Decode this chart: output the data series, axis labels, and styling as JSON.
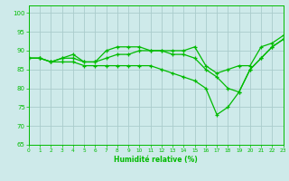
{
  "xlabel": "Humidité relative (%)",
  "bg_color": "#ceeaea",
  "line_color": "#00bb00",
  "grid_color": "#aacccc",
  "line1_x": [
    0,
    1,
    2,
    3,
    4,
    5,
    6,
    7,
    8,
    9,
    10,
    11,
    12,
    13,
    14,
    15,
    16,
    17,
    18,
    19,
    20,
    21,
    22,
    23
  ],
  "line1_y": [
    88,
    88,
    87,
    88,
    89,
    87,
    87,
    90,
    91,
    91,
    91,
    90,
    90,
    90,
    90,
    91,
    86,
    84,
    85,
    86,
    86,
    91,
    92,
    94
  ],
  "line2_x": [
    0,
    1,
    2,
    3,
    4,
    5,
    6,
    7,
    8,
    9,
    10,
    11,
    12,
    13,
    14,
    15,
    16,
    17,
    18,
    19,
    20,
    21,
    22,
    23
  ],
  "line2_y": [
    88,
    88,
    87,
    88,
    88,
    87,
    87,
    88,
    89,
    89,
    90,
    90,
    90,
    89,
    89,
    88,
    85,
    83,
    80,
    79,
    85,
    88,
    91,
    93
  ],
  "line3_x": [
    0,
    1,
    2,
    3,
    4,
    5,
    6,
    7,
    8,
    9,
    10,
    11,
    12,
    13,
    14,
    15,
    16,
    17,
    18,
    19,
    20,
    21,
    22,
    23
  ],
  "line3_y": [
    88,
    88,
    87,
    87,
    87,
    86,
    86,
    86,
    86,
    86,
    86,
    86,
    85,
    84,
    83,
    82,
    80,
    73,
    75,
    79,
    85,
    88,
    91,
    93
  ],
  "xlim": [
    0,
    23
  ],
  "ylim": [
    65,
    102
  ],
  "yticks": [
    65,
    70,
    75,
    80,
    85,
    90,
    95,
    100
  ],
  "xticks": [
    0,
    1,
    2,
    3,
    4,
    5,
    6,
    7,
    8,
    9,
    10,
    11,
    12,
    13,
    14,
    15,
    16,
    17,
    18,
    19,
    20,
    21,
    22,
    23
  ],
  "figwidth": 3.2,
  "figheight": 2.0,
  "dpi": 100
}
